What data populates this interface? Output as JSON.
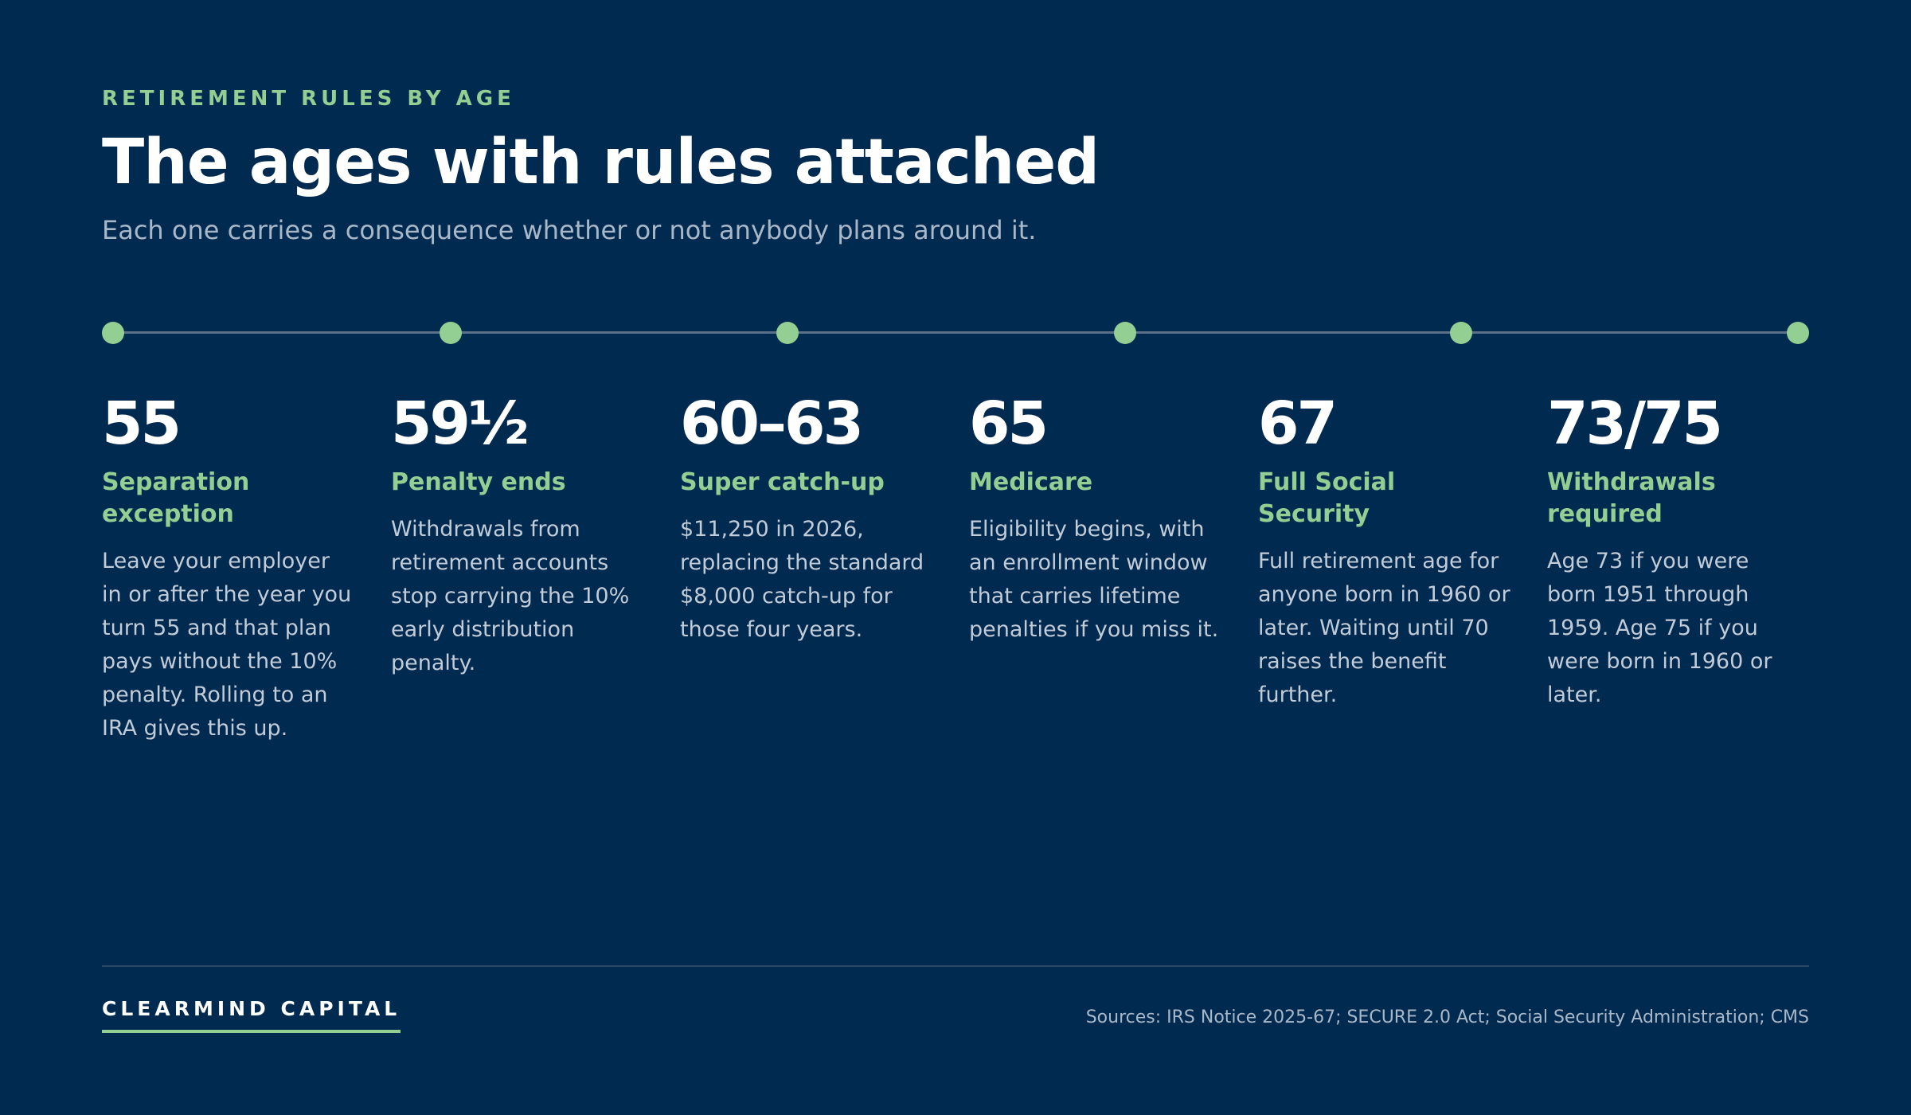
{
  "header": {
    "eyebrow": "RETIREMENT RULES BY AGE",
    "title": "The ages with rules attached",
    "subtitle": "Each one carries a consequence whether or not anybody plans around it."
  },
  "colors": {
    "background": "#012a50",
    "accent": "#93ce93",
    "text": "#ffffff",
    "muted": "#a9b8c8"
  },
  "milestones": [
    {
      "age": "55",
      "title": "Separation exception",
      "description": "Leave your employer in or after the year you turn 55 and that plan pays without the 10% penalty. Rolling to an IRA gives this up."
    },
    {
      "age": "59½",
      "title": "Penalty ends",
      "description": "Withdrawals from retirement accounts stop carrying the 10% early distribution penalty."
    },
    {
      "age": "60–63",
      "title": "Super catch-up",
      "description": "$11,250 in 2026, replacing the standard $8,000 catch-up for those four years."
    },
    {
      "age": "65",
      "title": "Medicare",
      "description": "Eligibility begins, with an enrollment window that carries lifetime penalties if you miss it."
    },
    {
      "age": "67",
      "title": "Full Social Security",
      "description": "Full retirement age for anyone born in 1960 or later. Waiting until 70 raises the benefit further."
    },
    {
      "age": "73/75",
      "title": "Withdrawals required",
      "description": "Age 73 if you were born 1951 through 1959. Age 75 if you were born in 1960 or later."
    }
  ],
  "footer": {
    "brand": "CLEARMIND CAPITAL",
    "sources": "Sources: IRS Notice 2025-67; SECURE 2.0 Act; Social Security Administration; CMS"
  }
}
